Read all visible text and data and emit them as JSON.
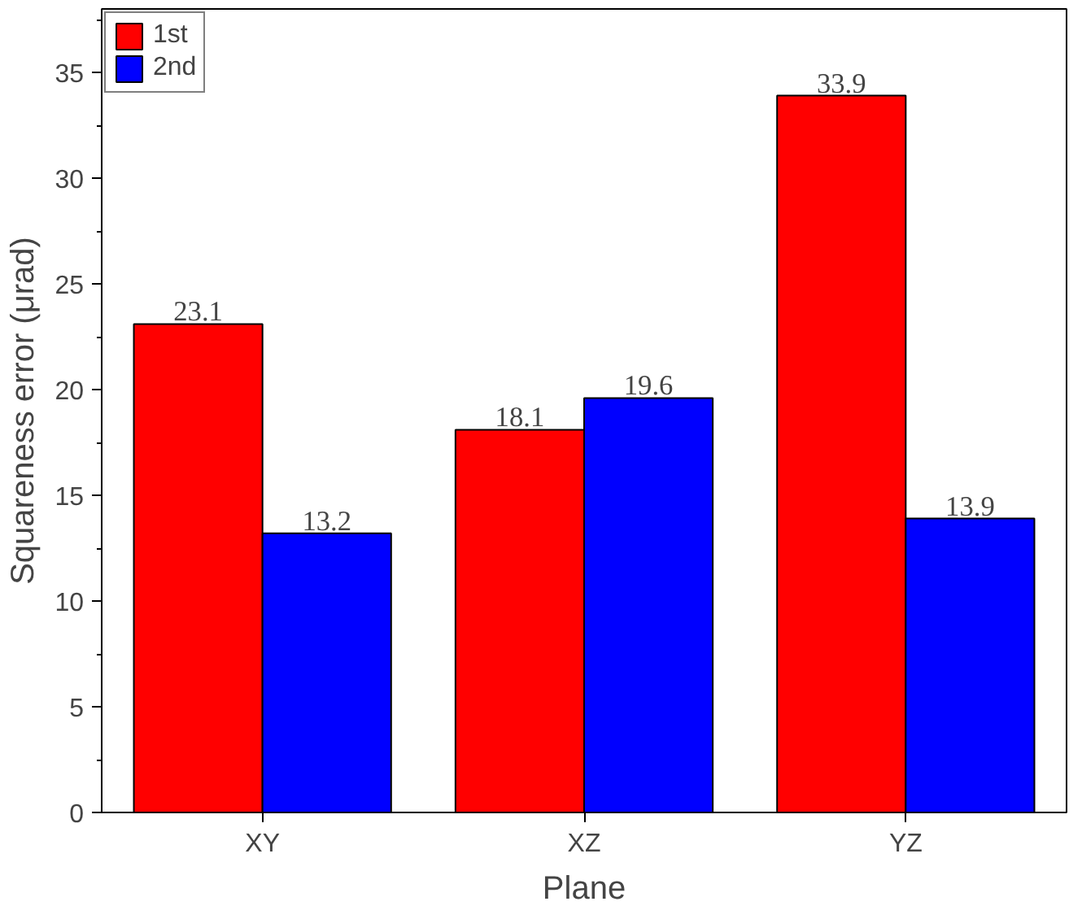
{
  "chart_data": {
    "type": "bar",
    "xlabel": "Plane",
    "ylabel": "Squareness error (μrad)",
    "categories": [
      "XY",
      "XZ",
      "YZ"
    ],
    "series": [
      {
        "name": "1st",
        "color": "#ff0000",
        "values": [
          23.1,
          18.1,
          33.9
        ]
      },
      {
        "name": "2nd",
        "color": "#0000ff",
        "values": [
          13.2,
          19.6,
          13.9
        ]
      }
    ],
    "ylim": [
      0,
      38
    ],
    "yticks": [
      0,
      5,
      10,
      15,
      20,
      25,
      30,
      35
    ],
    "data_labels": true,
    "legend": "top left",
    "grid": false
  }
}
